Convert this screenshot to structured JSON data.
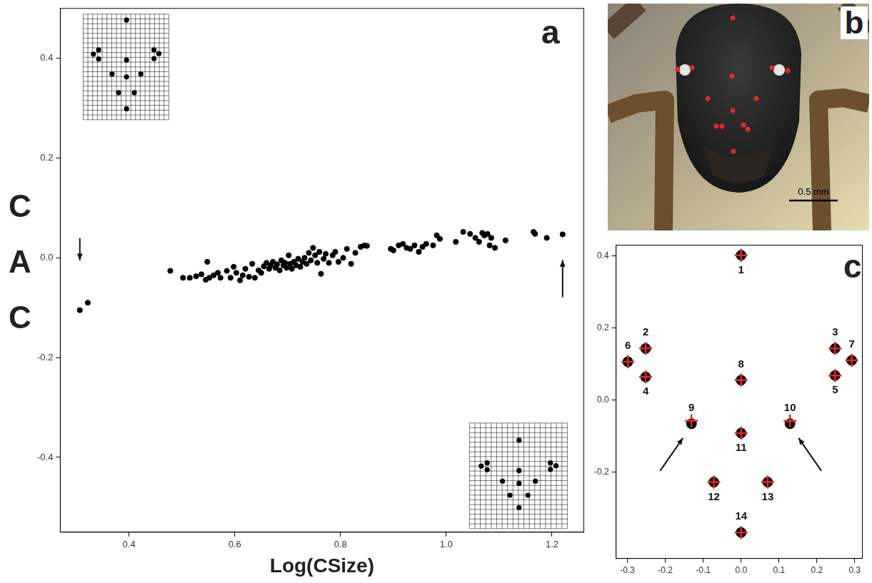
{
  "chart_data": [
    {
      "type": "scatter",
      "panel_label": "a",
      "xlabel": "Log(CSize)",
      "ylabel": "CAC",
      "x": [
        0.307,
        0.322,
        0.478,
        0.502,
        0.515,
        0.527,
        0.537,
        0.545,
        0.548,
        0.552,
        0.56,
        0.568,
        0.573,
        0.585,
        0.592,
        0.598,
        0.603,
        0.61,
        0.615,
        0.62,
        0.627,
        0.633,
        0.638,
        0.645,
        0.65,
        0.655,
        0.66,
        0.665,
        0.668,
        0.672,
        0.677,
        0.68,
        0.685,
        0.688,
        0.692,
        0.695,
        0.698,
        0.702,
        0.705,
        0.708,
        0.712,
        0.716,
        0.72,
        0.724,
        0.728,
        0.732,
        0.736,
        0.74,
        0.744,
        0.748,
        0.752,
        0.756,
        0.76,
        0.763,
        0.768,
        0.772,
        0.778,
        0.785,
        0.79,
        0.796,
        0.805,
        0.812,
        0.82,
        0.828,
        0.838,
        0.845,
        0.85,
        0.895,
        0.9,
        0.91,
        0.918,
        0.925,
        0.932,
        0.94,
        0.948,
        0.955,
        0.962,
        0.975,
        0.982,
        0.988,
        1.018,
        1.032,
        1.045,
        1.055,
        1.062,
        1.068,
        1.072,
        1.078,
        1.082,
        1.085,
        1.092,
        1.112,
        1.165,
        1.168,
        1.19,
        1.22
      ],
      "values": [
        -0.105,
        -0.09,
        -0.026,
        -0.04,
        -0.04,
        -0.037,
        -0.033,
        -0.044,
        -0.008,
        -0.04,
        -0.035,
        -0.03,
        -0.04,
        -0.026,
        -0.04,
        -0.018,
        -0.03,
        -0.045,
        -0.035,
        -0.022,
        -0.038,
        -0.012,
        -0.04,
        -0.025,
        -0.03,
        -0.017,
        -0.01,
        -0.022,
        -0.015,
        -0.008,
        -0.02,
        -0.013,
        -0.025,
        -0.005,
        -0.015,
        -0.01,
        -0.02,
        0.005,
        -0.012,
        -0.022,
        -0.008,
        -0.015,
        -0.002,
        -0.018,
        -0.008,
        0,
        -0.012,
        0.01,
        -0.005,
        0.02,
        0.005,
        -0.01,
        0.012,
        -0.032,
        -0.002,
        0.008,
        -0.01,
        0.005,
        0.012,
        -0.008,
        0,
        0.018,
        -0.012,
        0.01,
        0.022,
        0.025,
        0.024,
        0.018,
        0.015,
        0.025,
        0.028,
        0.02,
        0.018,
        0.025,
        0.012,
        0.022,
        0.028,
        0.025,
        0.045,
        0.038,
        0.032,
        0.052,
        0.048,
        0.04,
        0.032,
        0.05,
        0.045,
        0.048,
        0.025,
        0.04,
        0.02,
        0.035,
        0.052,
        0.048,
        0.04,
        0.047
      ],
      "color": "#000000",
      "marker": "circle",
      "xlim": [
        0.27,
        1.26
      ],
      "ylim": [
        -0.55,
        0.5
      ],
      "xticks": [
        0.4,
        0.6,
        0.8,
        {
          "value": 1,
          "label": "1.0"
        },
        1.2
      ],
      "yticks": [
        -0.4,
        -0.2,
        {
          "value": 0,
          "label": "0.0"
        },
        0.2,
        0.4
      ],
      "grid": false
    },
    {
      "type": "scatter",
      "panel_label": "c",
      "x": [
        0,
        -0.252,
        0.248,
        -0.252,
        0.248,
        -0.299,
        0.292,
        0,
        -0.131,
        0.129,
        0,
        -0.072,
        0.07,
        0
      ],
      "point_labels": [
        "1",
        "2",
        "3",
        "4",
        "5",
        "6",
        "7",
        "8",
        "9",
        "10",
        "11",
        "12",
        "13",
        "14"
      ],
      "series": [
        {
          "color": "#000000",
          "marker": "circle",
          "values": [
            0.402,
            0.143,
            0.143,
            0.064,
            0.068,
            0.106,
            0.11,
            0.055,
            -0.066,
            -0.066,
            -0.092,
            -0.228,
            -0.228,
            -0.368
          ]
        },
        {
          "color": "#e8251f",
          "marker": "cross",
          "values": [
            0.402,
            0.143,
            0.143,
            0.064,
            0.068,
            0.106,
            0.11,
            0.055,
            -0.058,
            -0.058,
            -0.092,
            -0.228,
            -0.228,
            -0.368
          ]
        }
      ],
      "xlim": [
        -0.33,
        0.32
      ],
      "ylim": [
        -0.44,
        0.43
      ],
      "xticks": [
        -0.3,
        -0.2,
        -0.1,
        {
          "value": 0,
          "label": "0.0"
        },
        0.1,
        0.2,
        0.3
      ],
      "yticks": [
        -0.2,
        {
          "value": 0,
          "label": "0.0"
        },
        0.2,
        0.4
      ],
      "grid": false
    }
  ],
  "photo": {
    "panel_label": "b",
    "scale_bar_label": "0.5 mm"
  }
}
